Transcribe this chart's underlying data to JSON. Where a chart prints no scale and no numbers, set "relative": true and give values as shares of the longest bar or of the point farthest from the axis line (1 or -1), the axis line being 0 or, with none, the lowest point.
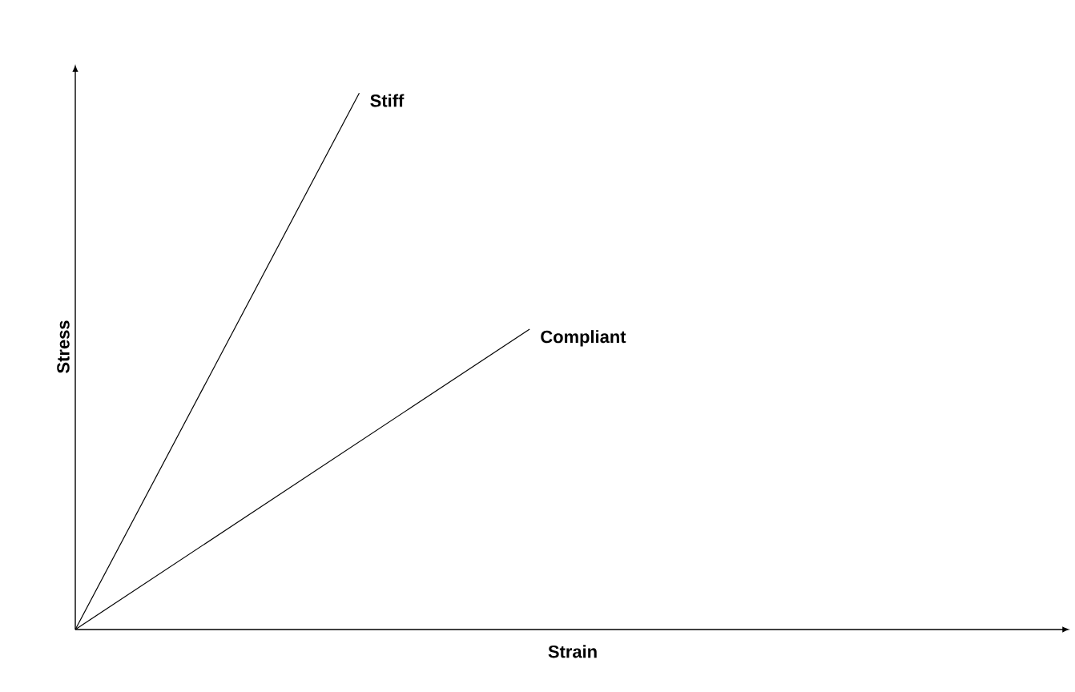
{
  "chart_data": {
    "type": "line",
    "relative": true,
    "xlabel": "Strain",
    "ylabel": "Stress",
    "categories": [
      null,
      null,
      null,
      null,
      null,
      null,
      null,
      null,
      null
    ],
    "series": [
      {
        "name": "Stiff",
        "color": "#000000",
        "values": [
          0,
          null,
          null,
          null,
          null,
          1,
          null,
          null,
          null
        ]
      },
      {
        "name": "Compliant",
        "color": "#000000",
        "values": [
          0,
          null,
          null,
          null,
          null,
          null,
          null,
          null,
          0.56
        ]
      }
    ]
  }
}
